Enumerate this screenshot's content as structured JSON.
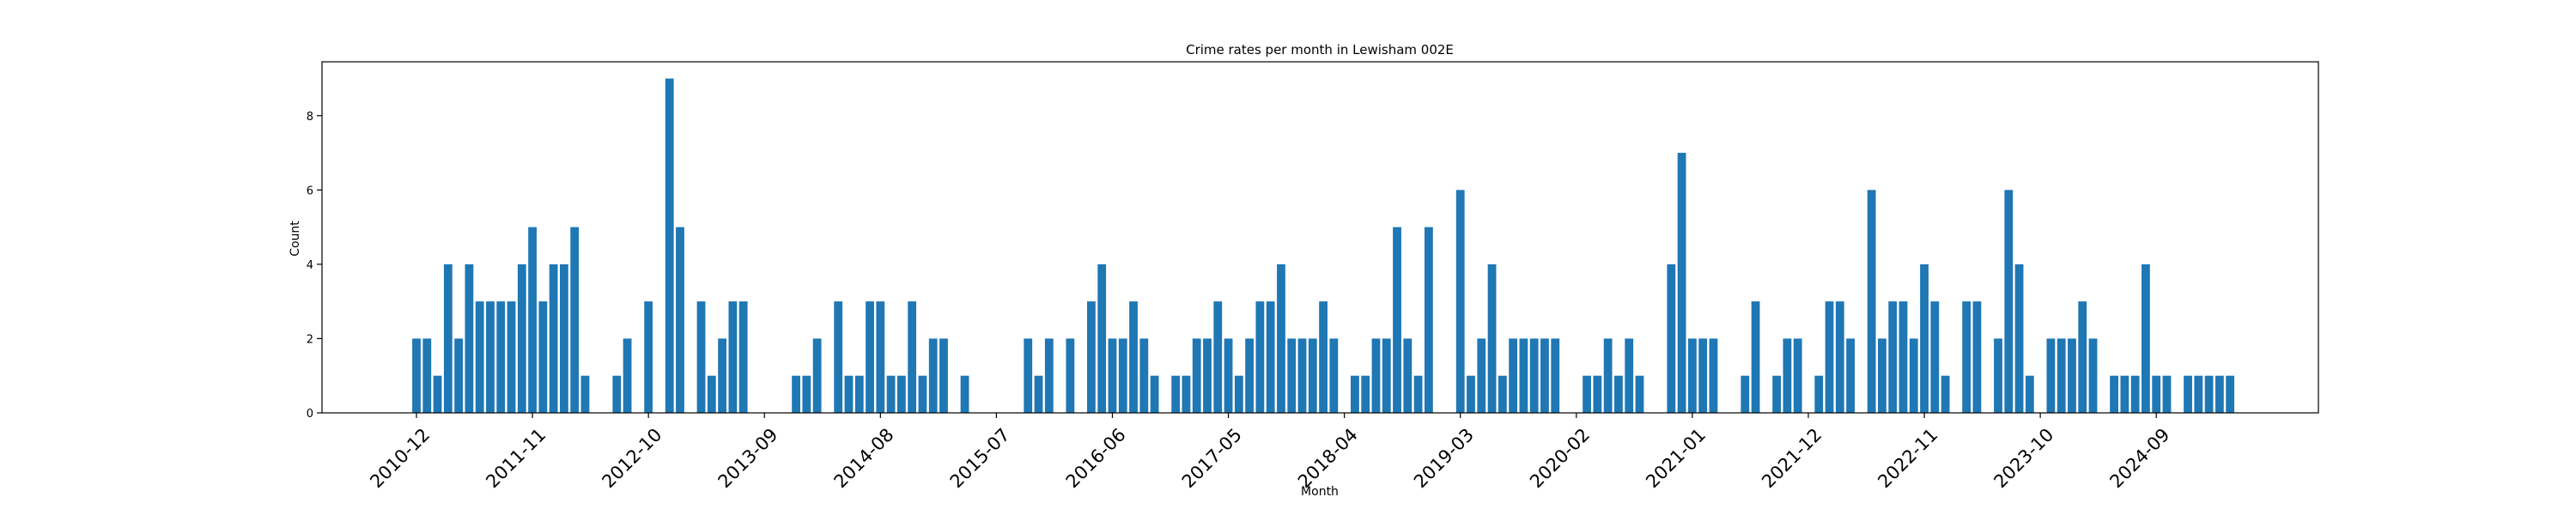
{
  "chart_data": {
    "type": "bar",
    "title": "Crime rates per month in Lewisham 002E",
    "xlabel": "Month",
    "ylabel": "Count",
    "ylim": [
      0,
      9.45
    ],
    "yticks": [
      0,
      2,
      4,
      6,
      8
    ],
    "grid": false,
    "legend": "none",
    "color": "#1f77b4",
    "x_tick_labels": [
      "2010-12",
      "2011-11",
      "2012-10",
      "2013-09",
      "2014-08",
      "2015-07",
      "2016-06",
      "2017-05",
      "2018-04",
      "2019-03",
      "2020-02",
      "2021-01",
      "2021-12",
      "2022-11",
      "2023-10",
      "2024-09"
    ],
    "categories": [
      "2010-12",
      "2011-01",
      "2011-02",
      "2011-03",
      "2011-04",
      "2011-05",
      "2011-06",
      "2011-07",
      "2011-08",
      "2011-09",
      "2011-10",
      "2011-11",
      "2011-12",
      "2012-01",
      "2012-02",
      "2012-03",
      "2012-04",
      "2012-05",
      "2012-06",
      "2012-07",
      "2012-08",
      "2012-09",
      "2012-10",
      "2012-11",
      "2012-12",
      "2013-01",
      "2013-02",
      "2013-03",
      "2013-04",
      "2013-05",
      "2013-06",
      "2013-07",
      "2013-08",
      "2013-09",
      "2013-10",
      "2013-11",
      "2013-12",
      "2014-01",
      "2014-02",
      "2014-03",
      "2014-04",
      "2014-05",
      "2014-06",
      "2014-07",
      "2014-08",
      "2014-09",
      "2014-10",
      "2014-11",
      "2014-12",
      "2015-01",
      "2015-02",
      "2015-03",
      "2015-04",
      "2015-05",
      "2015-06",
      "2015-07",
      "2015-08",
      "2015-09",
      "2015-10",
      "2015-11",
      "2015-12",
      "2016-01",
      "2016-02",
      "2016-03",
      "2016-04",
      "2016-05",
      "2016-06",
      "2016-07",
      "2016-08",
      "2016-09",
      "2016-10",
      "2016-11",
      "2016-12",
      "2017-01",
      "2017-02",
      "2017-03",
      "2017-04",
      "2017-05",
      "2017-06",
      "2017-07",
      "2017-08",
      "2017-09",
      "2017-10",
      "2017-11",
      "2017-12",
      "2018-01",
      "2018-02",
      "2018-03",
      "2018-04",
      "2018-05",
      "2018-06",
      "2018-07",
      "2018-08",
      "2018-09",
      "2018-10",
      "2018-11",
      "2018-12",
      "2019-01",
      "2019-02",
      "2019-03",
      "2019-04",
      "2019-05",
      "2019-06",
      "2019-07",
      "2019-08",
      "2019-09",
      "2019-10",
      "2019-11",
      "2019-12",
      "2020-01",
      "2020-02",
      "2020-03",
      "2020-04",
      "2020-05",
      "2020-06",
      "2020-07",
      "2020-08",
      "2020-09",
      "2020-10",
      "2020-11",
      "2020-12",
      "2021-01",
      "2021-02",
      "2021-03",
      "2021-04",
      "2021-05",
      "2021-06",
      "2021-07",
      "2021-08",
      "2021-09",
      "2021-10",
      "2021-11",
      "2021-12",
      "2022-01",
      "2022-02",
      "2022-03",
      "2022-04",
      "2022-05",
      "2022-06",
      "2022-07",
      "2022-08",
      "2022-09",
      "2022-10",
      "2022-11",
      "2022-12",
      "2023-01",
      "2023-02",
      "2023-03",
      "2023-04",
      "2023-05",
      "2023-06",
      "2023-07",
      "2023-08",
      "2023-09",
      "2023-10",
      "2023-11",
      "2023-12",
      "2024-01",
      "2024-02",
      "2024-03",
      "2024-04",
      "2024-05",
      "2024-06",
      "2024-07",
      "2024-08",
      "2024-09",
      "2024-10",
      "2024-11",
      "2024-12",
      "2025-01",
      "2025-02",
      "2025-03",
      "2025-04",
      "2025-05",
      "2025-06",
      "2025-07",
      "2025-08",
      "2025-09",
      "2025-10",
      "2025-11"
    ],
    "values": [
      2,
      2,
      1,
      4,
      2,
      4,
      3,
      3,
      3,
      3,
      4,
      5,
      3,
      4,
      4,
      5,
      1,
      0,
      0,
      1,
      2,
      0,
      3,
      0,
      9,
      5,
      0,
      3,
      1,
      2,
      3,
      3,
      0,
      0,
      0,
      0,
      1,
      1,
      2,
      0,
      3,
      1,
      1,
      3,
      3,
      1,
      1,
      3,
      1,
      2,
      2,
      0,
      1,
      0,
      0,
      0,
      0,
      0,
      2,
      1,
      2,
      0,
      2,
      0,
      3,
      4,
      2,
      2,
      3,
      2,
      1,
      0,
      1,
      1,
      2,
      2,
      3,
      2,
      1,
      2,
      3,
      3,
      4,
      2,
      2,
      2,
      3,
      2,
      0,
      1,
      1,
      2,
      2,
      5,
      2,
      1,
      5,
      0,
      0,
      6,
      1,
      2,
      4,
      1,
      2,
      2,
      2,
      2,
      2,
      0,
      0,
      1,
      1,
      2,
      1,
      2,
      1,
      0,
      0,
      4,
      7,
      2,
      2,
      2,
      0,
      0,
      1,
      3,
      0,
      1,
      2,
      2,
      0,
      1,
      3,
      3,
      2,
      0,
      6,
      2,
      3,
      3,
      2,
      4,
      3,
      1,
      0,
      3,
      3,
      0,
      2,
      6,
      4,
      1,
      0,
      2,
      2,
      2,
      3,
      2,
      0,
      1,
      1,
      1,
      4,
      1,
      1,
      0,
      1,
      1,
      1,
      1,
      1,
      0,
      0,
      0,
      0,
      0,
      0,
      0
    ]
  }
}
